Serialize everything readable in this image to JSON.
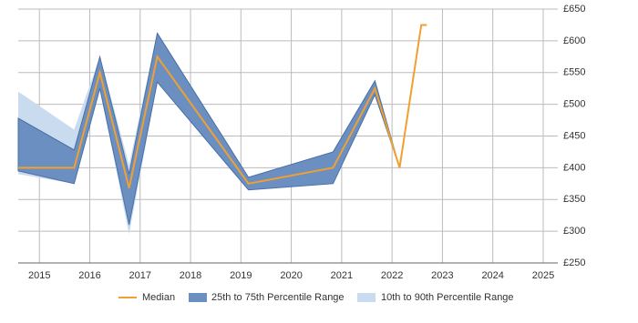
{
  "chart_data": {
    "type": "line",
    "x": [
      2014.58,
      2015.69,
      2016.2,
      2016.78,
      2017.34,
      2019.15,
      2020.83,
      2021.66,
      2022.15,
      2022.58,
      2022.69
    ],
    "series": [
      {
        "name": "Median",
        "color": "#f0a030",
        "values": [
          400,
          400,
          550,
          368,
          575,
          375,
          400,
          525,
          400,
          625,
          625
        ]
      },
      {
        "name": "25th to 75th Percentile Range",
        "color": "#6b8fc0",
        "low": [
          395,
          375,
          525,
          310,
          535,
          365,
          375,
          515,
          400,
          null,
          null
        ],
        "high": [
          478,
          428,
          575,
          390,
          612,
          385,
          425,
          537,
          400,
          null,
          null
        ]
      },
      {
        "name": "10th to 90th Percentile Range",
        "color": "#c9dbee",
        "low": [
          390,
          375,
          525,
          295,
          535,
          365,
          375,
          515,
          400,
          null,
          null
        ],
        "high": [
          520,
          460,
          575,
          405,
          612,
          385,
          425,
          537,
          400,
          null,
          null
        ]
      }
    ],
    "xlim": [
      2014.58,
      2025.29
    ],
    "xticks": [
      2015,
      2016,
      2017,
      2018,
      2019,
      2020,
      2021,
      2022,
      2023,
      2024,
      2025
    ],
    "ylim": [
      250,
      650
    ],
    "yticks": [
      {
        "value": 250,
        "label": "£250"
      },
      {
        "value": 300,
        "label": "£300"
      },
      {
        "value": 350,
        "label": "£350"
      },
      {
        "value": 400,
        "label": "£400"
      },
      {
        "value": 450,
        "label": "£450"
      },
      {
        "value": 500,
        "label": "£500"
      },
      {
        "value": 550,
        "label": "£550"
      },
      {
        "value": 600,
        "label": "£600"
      },
      {
        "value": 650,
        "label": "£650"
      }
    ],
    "grid": true,
    "legend": "bottom"
  }
}
